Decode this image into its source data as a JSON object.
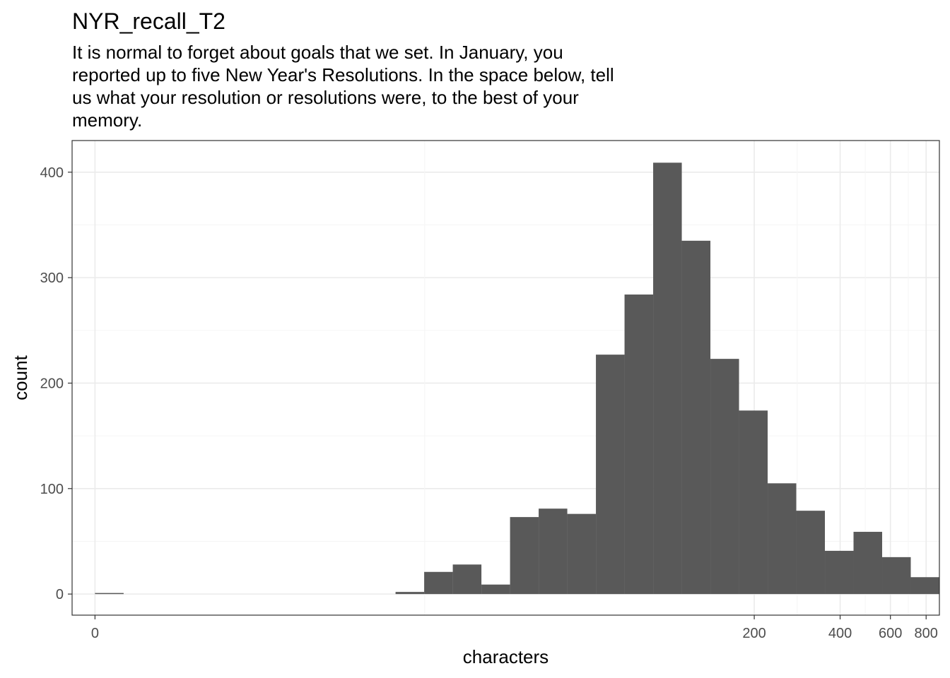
{
  "chart_data": {
    "type": "bar",
    "title": "NYR_recall_T2",
    "subtitle": "It is normal to forget about goals that we set. In January, you\nreported up to five New Year's Resolutions. In the space below, tell\nus what your resolution or resolutions were, to the best of your\nmemory.",
    "xlabel": "characters",
    "ylabel": "count",
    "x_scale": "log10(x+1)",
    "x_ticks": [
      0,
      200,
      400,
      600,
      800
    ],
    "y_ticks": [
      0,
      100,
      200,
      300,
      400
    ],
    "ylim": [
      -20,
      430
    ],
    "xlim": [
      -0.08,
      2.95
    ],
    "grid": true,
    "bar_color": "#595959",
    "bins": [
      {
        "x0": 0,
        "x1": 0.1,
        "count": 1
      },
      {
        "x0": 1.05,
        "x1": 1.15,
        "count": 2
      },
      {
        "x0": 1.15,
        "x1": 1.25,
        "count": 21
      },
      {
        "x0": 1.25,
        "x1": 1.35,
        "count": 28
      },
      {
        "x0": 1.35,
        "x1": 1.45,
        "count": 9
      },
      {
        "x0": 1.45,
        "x1": 1.55,
        "count": 73
      },
      {
        "x0": 1.55,
        "x1": 1.65,
        "count": 81
      },
      {
        "x0": 1.65,
        "x1": 1.75,
        "count": 76
      },
      {
        "x0": 1.75,
        "x1": 1.85,
        "count": 227
      },
      {
        "x0": 1.85,
        "x1": 1.95,
        "count": 284
      },
      {
        "x0": 1.95,
        "x1": 2.05,
        "count": 409
      },
      {
        "x0": 2.05,
        "x1": 2.15,
        "count": 335
      },
      {
        "x0": 2.15,
        "x1": 2.25,
        "count": 223
      },
      {
        "x0": 2.25,
        "x1": 2.35,
        "count": 174
      },
      {
        "x0": 2.35,
        "x1": 2.45,
        "count": 105
      },
      {
        "x0": 2.45,
        "x1": 2.55,
        "count": 79
      },
      {
        "x0": 2.55,
        "x1": 2.65,
        "count": 41
      },
      {
        "x0": 2.65,
        "x1": 2.75,
        "count": 59
      },
      {
        "x0": 2.75,
        "x1": 2.85,
        "count": 35
      },
      {
        "x0": 2.85,
        "x1": 2.95,
        "count": 16
      }
    ]
  }
}
